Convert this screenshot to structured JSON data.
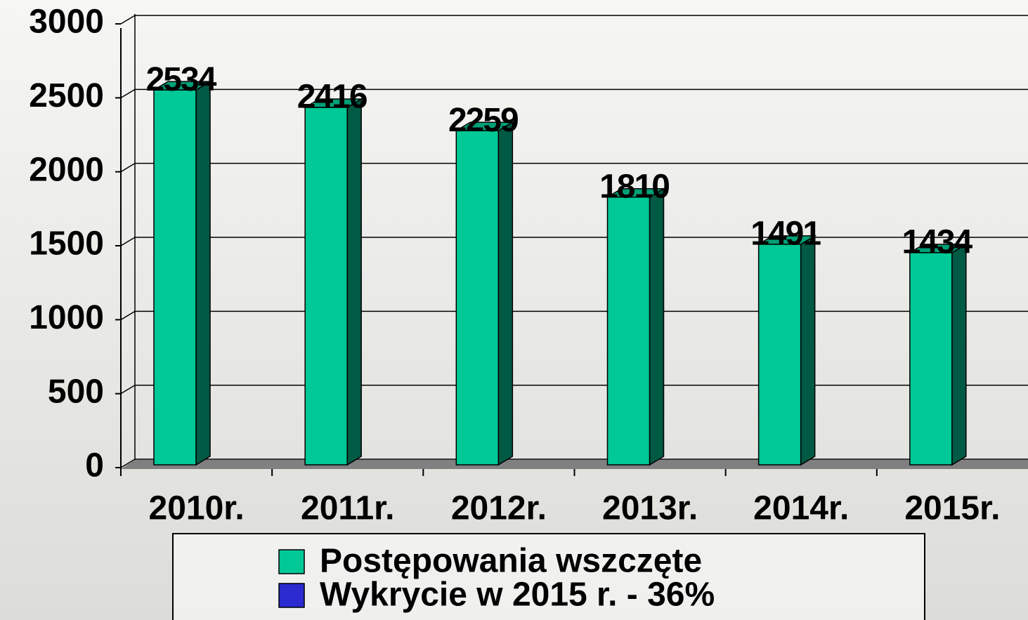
{
  "chart_data": {
    "type": "bar",
    "categories": [
      "2010r.",
      "2011r.",
      "2012r.",
      "2013r.",
      "2014r.",
      "2015r."
    ],
    "series": [
      {
        "name": "Postępowania wszczęte",
        "color": "#00c896",
        "values": [
          2534,
          2416,
          2259,
          1810,
          1491,
          1434
        ]
      },
      {
        "name": "Wykrycie w 2015 r. - 36%",
        "color": "#2b2bd0",
        "values": [
          null,
          null,
          null,
          null,
          null,
          null
        ]
      }
    ],
    "ylim": [
      0,
      3000
    ],
    "yticks": [
      0,
      500,
      1000,
      1500,
      2000,
      2500,
      3000
    ],
    "grid": true
  }
}
